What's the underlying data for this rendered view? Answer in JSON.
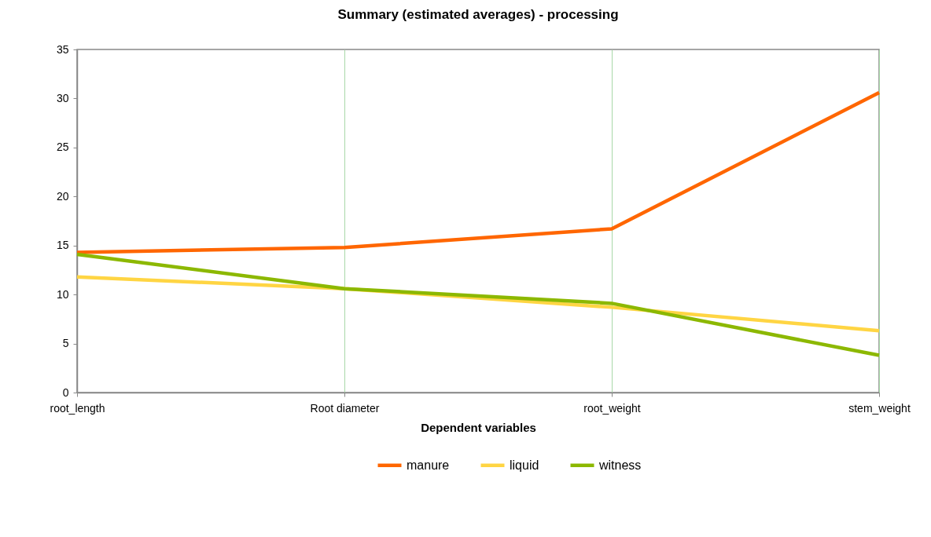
{
  "chart_data": {
    "type": "line",
    "title": "Summary (estimated averages) - processing",
    "xlabel": "Dependent variables",
    "categories": [
      "root_length",
      "Root diameter",
      "root_weight",
      "stem_weight"
    ],
    "series": [
      {
        "name": "manure",
        "color": "#ff6600",
        "values": [
          14.3,
          14.8,
          16.7,
          30.6
        ]
      },
      {
        "name": "liquid",
        "color": "#ffd543",
        "values": [
          11.8,
          10.6,
          8.7,
          6.3
        ]
      },
      {
        "name": "witness",
        "color": "#8cb800",
        "values": [
          14.1,
          10.6,
          9.1,
          3.8
        ]
      }
    ],
    "ylim": [
      0,
      35
    ],
    "yticks": [
      0,
      5,
      10,
      15,
      20,
      25,
      30,
      35
    ],
    "grid": "x",
    "legend": "bottom",
    "marker": "none",
    "line_style": "solid"
  }
}
